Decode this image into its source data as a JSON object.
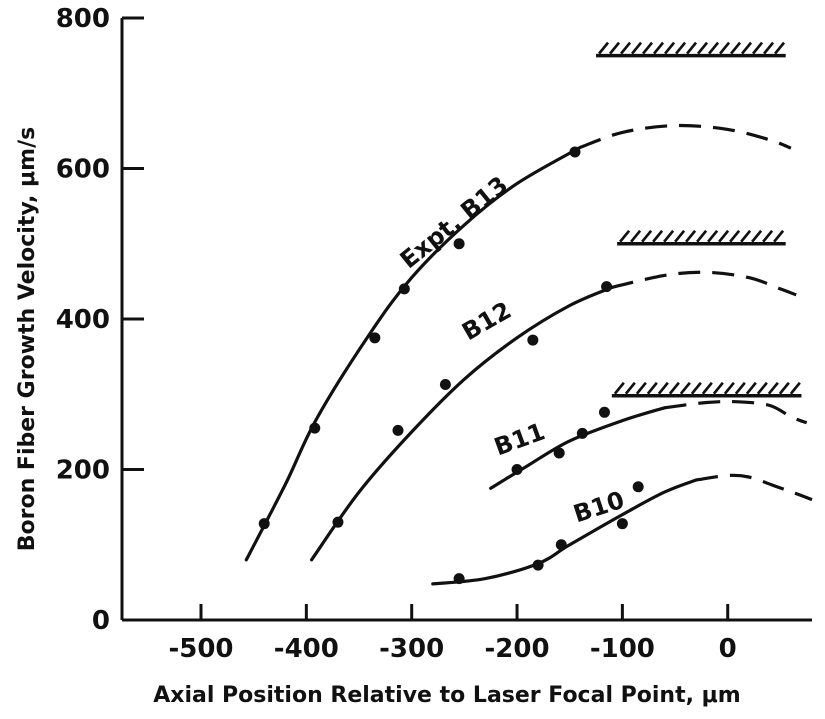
{
  "chart_data": {
    "type": "line",
    "title": "",
    "xlabel": "Axial Position Relative to Laser Focal Point, μm",
    "ylabel": "Boron Fiber Growth Velocity, μm/s",
    "xlim": [
      -575,
      80
    ],
    "ylim": [
      0,
      800
    ],
    "xticks": [
      -500,
      -400,
      -300,
      -200,
      -100,
      0
    ],
    "xtick_labels": [
      "-500",
      "-400",
      "-300",
      "-200",
      "-100",
      "0"
    ],
    "yticks": [
      0,
      200,
      400,
      600,
      800
    ],
    "ytick_labels": [
      "0",
      "200",
      "400",
      "600",
      "800"
    ],
    "grid": false,
    "legend": "none",
    "series": [
      {
        "name": "Expt. B13",
        "label_rotation": -39,
        "label_at": [
          -255,
          520
        ],
        "solid": [
          [
            -457,
            80
          ],
          [
            -420,
            180
          ],
          [
            -390,
            268
          ],
          [
            -340,
            380
          ],
          [
            -300,
            455
          ],
          [
            -250,
            525
          ],
          [
            -200,
            580
          ],
          [
            -140,
            628
          ]
        ],
        "dashed": [
          [
            -140,
            628
          ],
          [
            -100,
            648
          ],
          [
            -50,
            657
          ],
          [
            0,
            652
          ],
          [
            40,
            638
          ],
          [
            60,
            627
          ]
        ],
        "points": [
          [
            -440,
            128
          ],
          [
            -392,
            255
          ],
          [
            -335,
            375
          ],
          [
            -307,
            440
          ],
          [
            -255,
            500
          ],
          [
            -145,
            622
          ]
        ],
        "limit": 750,
        "limit_range": [
          -125,
          55
        ]
      },
      {
        "name": "B12",
        "label_rotation": -30,
        "label_at": [
          -225,
          388
        ],
        "solid": [
          [
            -395,
            80
          ],
          [
            -350,
            170
          ],
          [
            -300,
            250
          ],
          [
            -250,
            320
          ],
          [
            -200,
            375
          ],
          [
            -150,
            418
          ],
          [
            -110,
            442
          ]
        ],
        "dashed": [
          [
            -110,
            442
          ],
          [
            -60,
            458
          ],
          [
            -20,
            462
          ],
          [
            20,
            455
          ],
          [
            50,
            440
          ],
          [
            65,
            432
          ]
        ],
        "points": [
          [
            -370,
            130
          ],
          [
            -313,
            252
          ],
          [
            -268,
            313
          ],
          [
            -185,
            372
          ],
          [
            -115,
            443
          ]
        ],
        "limit": 500,
        "limit_range": [
          -105,
          55
        ]
      },
      {
        "name": "B11",
        "label_rotation": -20,
        "label_at": [
          -195,
          230
        ],
        "solid": [
          [
            -225,
            175
          ],
          [
            -190,
            205
          ],
          [
            -150,
            238
          ],
          [
            -100,
            265
          ],
          [
            -60,
            282
          ]
        ],
        "dashed": [
          [
            -60,
            282
          ],
          [
            -20,
            289
          ],
          [
            10,
            290
          ],
          [
            40,
            285
          ],
          [
            60,
            270
          ],
          [
            75,
            262
          ]
        ],
        "points": [
          [
            -200,
            200
          ],
          [
            -160,
            222
          ],
          [
            -138,
            248
          ],
          [
            -117,
            276
          ]
        ],
        "limit": 298,
        "limit_range": [
          -110,
          70
        ]
      },
      {
        "name": "B10",
        "label_rotation": -18,
        "label_at": [
          -120,
          140
        ],
        "solid": [
          [
            -280,
            48
          ],
          [
            -230,
            55
          ],
          [
            -180,
            75
          ],
          [
            -150,
            100
          ],
          [
            -100,
            140
          ],
          [
            -60,
            170
          ],
          [
            -30,
            186
          ]
        ],
        "dashed": [
          [
            -30,
            186
          ],
          [
            0,
            192
          ],
          [
            20,
            190
          ],
          [
            45,
            178
          ],
          [
            65,
            168
          ],
          [
            80,
            160
          ]
        ],
        "points": [
          [
            -255,
            55
          ],
          [
            -180,
            73
          ],
          [
            -158,
            100
          ],
          [
            -100,
            128
          ],
          [
            -85,
            177
          ]
        ]
      }
    ]
  }
}
